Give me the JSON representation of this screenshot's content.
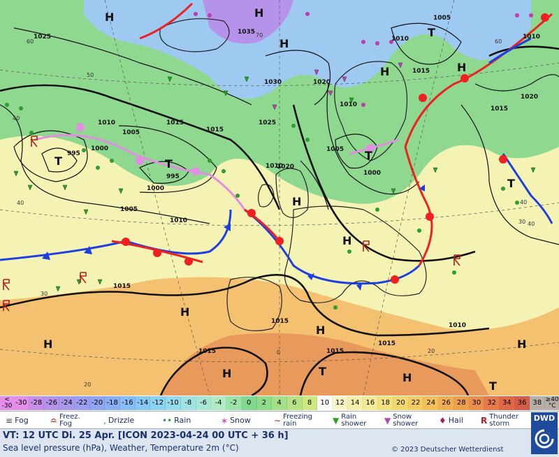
{
  "map": {
    "pressure_labels": [
      "1025",
      "1035",
      "1005",
      "1010",
      "1015",
      "1030",
      "1020",
      "1010",
      "1010",
      "1015",
      "1005",
      "1000",
      "995",
      "995",
      "1000",
      "1005",
      "1010",
      "1025",
      "1020",
      "1015",
      "1010",
      "1005",
      "1000",
      "1015",
      "1020",
      "1015",
      "1015",
      "1015",
      "1010",
      "1015",
      "1015",
      "1010"
    ],
    "temp_labels": [
      "60",
      "70",
      "50",
      "40",
      "40",
      "30",
      "30",
      "20",
      "20",
      "0",
      "60",
      "40",
      "40"
    ],
    "high_markers": [
      "H",
      "H",
      "H",
      "H",
      "H",
      "H",
      "H",
      "H",
      "H",
      "H",
      "H",
      "H",
      "H"
    ],
    "low_markers": [
      "T",
      "T",
      "T",
      "T",
      "T",
      "T",
      "T"
    ],
    "high_letter": "H",
    "low_letter": "T",
    "colors": {
      "sea_cold": "#9ec9f0",
      "land_green": "#8fd890",
      "mild_yellow": "#f4f3b4",
      "warm_orange": "#f4c170",
      "hot_orange": "#e89a5c",
      "cold_front": "#1e3fe0",
      "warm_front": "#f02020",
      "occlusion": "#e18ee3",
      "isobar": "#111111"
    }
  },
  "scale": {
    "low_end": [
      "<",
      "-30"
    ],
    "high_end": [
      "≥40",
      "°C"
    ],
    "values": [
      "-30",
      "-28",
      "-26",
      "-24",
      "-22",
      "-20",
      "-18",
      "-16",
      "-14",
      "-12",
      "-10",
      "-8",
      "-6",
      "-4",
      "-2",
      "0",
      "2",
      "4",
      "6",
      "8",
      "10",
      "12",
      "14",
      "16",
      "18",
      "20",
      "22",
      "24",
      "26",
      "28",
      "30",
      "32",
      "34",
      "36",
      "38"
    ],
    "colors": [
      "#e38ee8",
      "#c68fe8",
      "#b593ea",
      "#a898ec",
      "#9b9df0",
      "#8fa5f2",
      "#89b0f4",
      "#85bdf6",
      "#86c9f5",
      "#8bd4f0",
      "#93dceb",
      "#a0e4e2",
      "#a8e8d2",
      "#b0ecc2",
      "#9be3a8",
      "#7fd98e",
      "#8edb8a",
      "#a2df86",
      "#b8e384",
      "#cfe882",
      "#ffffff",
      "#f8f6c4",
      "#f7f0a8",
      "#f6ea92",
      "#f6e27d",
      "#f5d86c",
      "#f4cc60",
      "#f2bf58",
      "#f0b052",
      "#ee9f4e",
      "#eb8d4b",
      "#e67a48",
      "#df6946",
      "#d55c48",
      "#b8b0a8"
    ]
  },
  "legend": {
    "fog": "Fog",
    "freezing_fog": [
      "Freez.",
      "Fog"
    ],
    "drizzle": "Drizzle",
    "rain": "Rain",
    "snow": "Snow",
    "freezing_rain": [
      "Freezing",
      "rain"
    ],
    "rain_shower": [
      "Rain",
      "shower"
    ],
    "snow_shower": [
      "Snow",
      "shower"
    ],
    "hail": "Hail",
    "thunderstorm": [
      "Thunder",
      "storm"
    ]
  },
  "footer": {
    "valid_time": "VT: 12 UTC Di.  25 Apr. [ICON 2023-04-24  00 UTC + 36 h]",
    "description": "Sea level pressure (hPa), Weather, Temperature 2m (°C)",
    "copyright": "© 2023 Deutscher Wetterdienst",
    "logo": "DWD"
  }
}
